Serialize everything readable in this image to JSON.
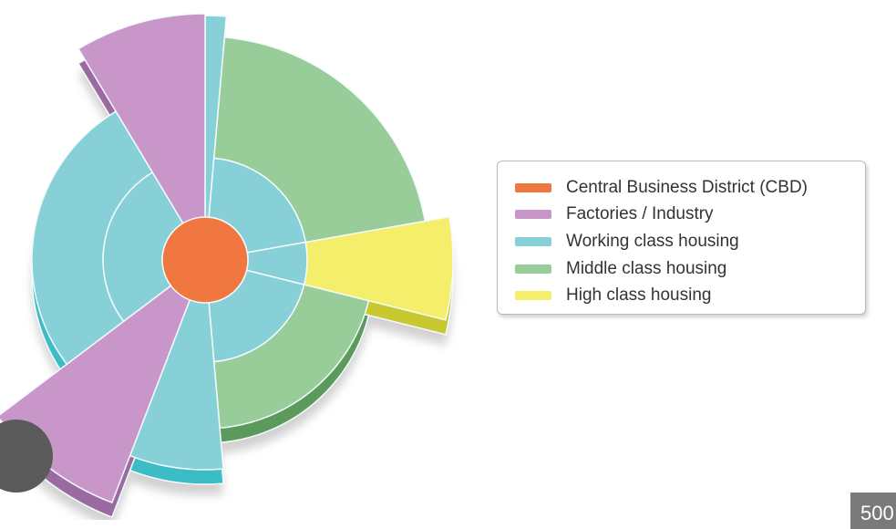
{
  "legend": {
    "items": [
      {
        "label": "Central Business District (CBD)",
        "color": "#f07840"
      },
      {
        "label": "Factories / Industry",
        "color": "#c896c8"
      },
      {
        "label": "Working class housing",
        "color": "#88d0d8"
      },
      {
        "label": "Middle class housing",
        "color": "#98cc98"
      },
      {
        "label": "High class housing",
        "color": "#f5ee6a"
      }
    ]
  },
  "side_colors": {
    "factories": "#9a6aa0",
    "working": "#3cbcc4",
    "middle": "#5c9a5c",
    "high": "#c8c830"
  },
  "badge": {
    "text": "500"
  }
}
